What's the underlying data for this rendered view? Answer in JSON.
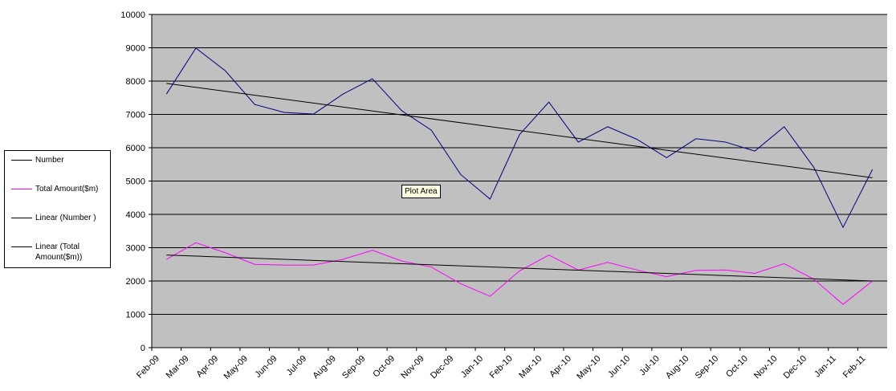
{
  "chart_data": {
    "type": "line",
    "categories": [
      "Feb-09",
      "Mar-09",
      "Apr-09",
      "May-09",
      "Jun-09",
      "Jul-09",
      "Aug-09",
      "Sep-09",
      "Oct-09",
      "Nov-09",
      "Dec-09",
      "Jan-10",
      "Feb-10",
      "Mar-10",
      "Apr-10",
      "May-10",
      "Jun-10",
      "Jul-10",
      "Aug-10",
      "Sep-10",
      "Oct-10",
      "Nov-10",
      "Dec-10",
      "Jan-11",
      "Feb-11"
    ],
    "series": [
      {
        "name": "Number",
        "color": "#000080",
        "values": [
          7610,
          8990,
          8310,
          7300,
          7060,
          7010,
          7610,
          8070,
          7110,
          6530,
          5200,
          4460,
          6390,
          7370,
          6170,
          6630,
          6250,
          5700,
          6270,
          6170,
          5900,
          6630,
          5420,
          3610,
          5350
        ]
      },
      {
        "name": "Total Amount($m)",
        "color": "#ff00ff",
        "values": [
          2650,
          3150,
          2850,
          2500,
          2480,
          2480,
          2650,
          2920,
          2600,
          2420,
          1920,
          1540,
          2300,
          2780,
          2330,
          2560,
          2330,
          2130,
          2320,
          2330,
          2230,
          2520,
          2060,
          1300,
          2000
        ]
      }
    ],
    "trendlines": [
      {
        "name": "Linear (Number )",
        "color": "#000000",
        "start": 7930,
        "end": 5100
      },
      {
        "name": "Linear (Total Amount($m))",
        "color": "#000000",
        "start": 2780,
        "end": 2000
      }
    ],
    "ylim": [
      0,
      10000
    ],
    "yticks": [
      0,
      1000,
      2000,
      3000,
      4000,
      5000,
      6000,
      7000,
      8000,
      9000,
      10000
    ],
    "grid": true,
    "plot_background": "#c0c0c0",
    "annotation": "Plot Area"
  }
}
